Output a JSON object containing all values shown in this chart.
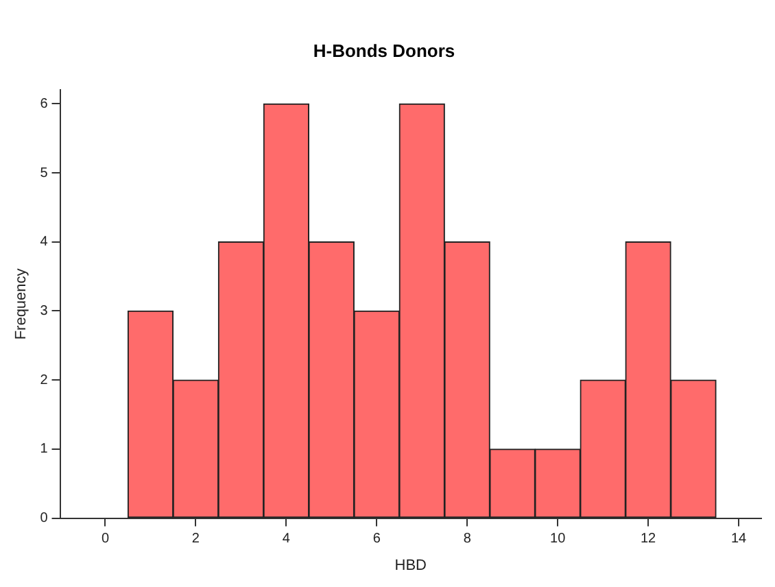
{
  "chart_data": {
    "type": "histogram",
    "title": "H-Bonds Donors",
    "xlabel": "HBD",
    "ylabel": "Frequency",
    "bins": [
      -0.5,
      0.5,
      1.5,
      2.5,
      3.5,
      4.5,
      5.5,
      6.5,
      7.5,
      8.5,
      9.5,
      10.5,
      11.5,
      12.5,
      13.5
    ],
    "values": [
      0,
      3,
      2,
      4,
      6,
      4,
      3,
      6,
      4,
      1,
      1,
      2,
      4,
      2
    ],
    "color": "#ff6b6b",
    "xlim": [
      -1,
      14.5
    ],
    "xticks": [
      0,
      2,
      4,
      6,
      8,
      10,
      12,
      14
    ],
    "ylim": [
      0,
      6.2
    ],
    "yticks": [
      0,
      1,
      2,
      3,
      4,
      5,
      6
    ],
    "grid": false,
    "legend": false
  }
}
